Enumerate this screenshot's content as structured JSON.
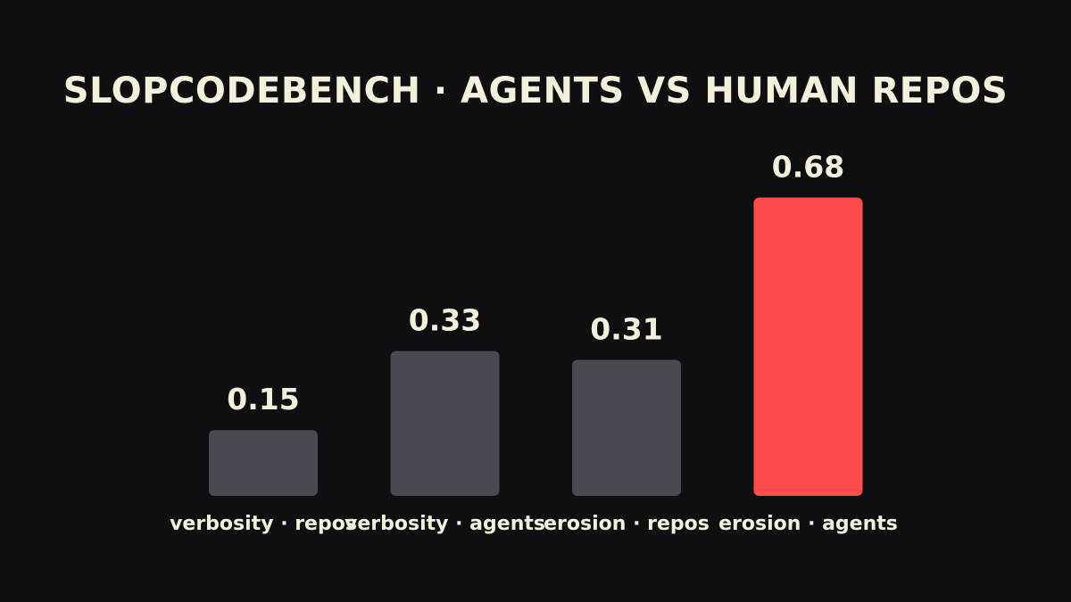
{
  "colors": {
    "background": "#0f0f12",
    "text": "#f3f0db",
    "bar_default": "#4a4952",
    "bar_highlight": "#ff4d4d"
  },
  "chart_data": {
    "type": "bar",
    "title": "SLOPCODEBENCH · AGENTS VS HUMAN REPOS",
    "xlabel": "",
    "ylabel": "",
    "categories": [
      "verbosity · repos",
      "verbosity · agents",
      "erosion · repos",
      "erosion · agents"
    ],
    "values": [
      0.15,
      0.33,
      0.31,
      0.68
    ],
    "value_labels": [
      "0.15",
      "0.33",
      "0.31",
      "0.68"
    ],
    "highlight_index": 3,
    "ylim": [
      0,
      0.7
    ],
    "grid": false,
    "legend": "none"
  }
}
